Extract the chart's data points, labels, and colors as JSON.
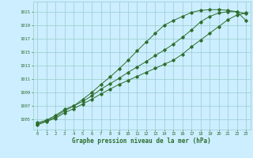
{
  "line1_x": [
    0,
    1,
    2,
    3,
    4,
    5,
    6,
    7,
    8,
    9,
    10,
    11,
    12,
    13,
    14,
    15,
    16,
    17,
    18,
    19,
    20,
    21,
    22,
    23
  ],
  "line1_y": [
    1004.5,
    1004.9,
    1005.6,
    1006.5,
    1007.0,
    1008.0,
    1009.0,
    1010.2,
    1011.3,
    1012.5,
    1013.8,
    1015.2,
    1016.5,
    1017.8,
    1019.0,
    1019.7,
    1020.3,
    1020.9,
    1021.2,
    1021.3,
    1021.3,
    1021.2,
    1021.0,
    1019.7
  ],
  "line2_x": [
    0,
    1,
    2,
    3,
    4,
    5,
    6,
    7,
    8,
    9,
    10,
    11,
    12,
    13,
    14,
    15,
    16,
    17,
    18,
    19,
    20,
    21,
    22,
    23
  ],
  "line2_y": [
    1004.3,
    1004.8,
    1005.4,
    1006.3,
    1007.0,
    1007.7,
    1008.5,
    1009.5,
    1010.3,
    1011.1,
    1012.0,
    1012.8,
    1013.6,
    1014.5,
    1015.3,
    1016.2,
    1017.2,
    1018.3,
    1019.5,
    1020.3,
    1020.8,
    1021.0,
    1021.0,
    1020.7
  ],
  "line3_x": [
    0,
    1,
    2,
    3,
    4,
    5,
    6,
    7,
    8,
    9,
    10,
    11,
    12,
    13,
    14,
    15,
    16,
    17,
    18,
    19,
    20,
    21,
    22,
    23
  ],
  "line3_y": [
    1004.2,
    1004.7,
    1005.2,
    1006.0,
    1006.6,
    1007.3,
    1008.0,
    1008.8,
    1009.5,
    1010.2,
    1010.8,
    1011.4,
    1012.0,
    1012.6,
    1013.2,
    1013.8,
    1014.7,
    1015.8,
    1016.8,
    1017.8,
    1018.8,
    1019.8,
    1020.5,
    1020.8
  ],
  "line_color": "#2d6e2d",
  "bg_color": "#cceeff",
  "grid_color": "#99cccc",
  "xlabel": "Graphe pression niveau de la mer (hPa)",
  "ylim": [
    1003.5,
    1022.5
  ],
  "xlim": [
    -0.5,
    23.5
  ],
  "yticks": [
    1005,
    1007,
    1009,
    1011,
    1013,
    1015,
    1017,
    1019,
    1021
  ],
  "xticks": [
    0,
    1,
    2,
    3,
    4,
    5,
    6,
    7,
    8,
    9,
    10,
    11,
    12,
    13,
    14,
    15,
    16,
    17,
    18,
    19,
    20,
    21,
    22,
    23
  ]
}
